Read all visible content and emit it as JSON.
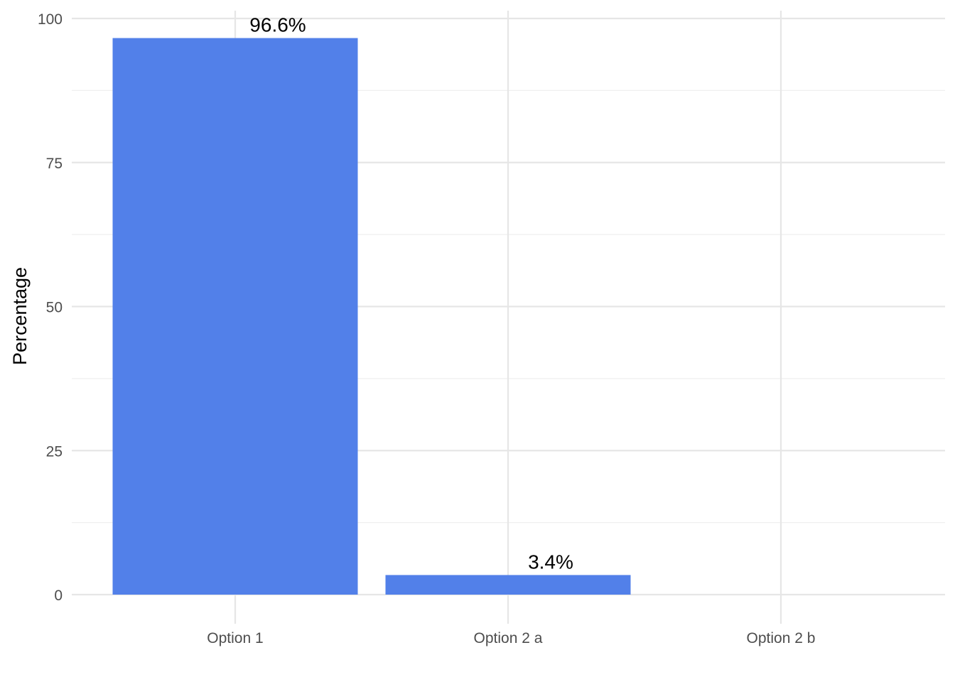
{
  "colors": {
    "bar": "#5280E9"
  },
  "chart_data": {
    "type": "bar",
    "title": "",
    "xlabel": "",
    "ylabel": "Percentage",
    "categories": [
      "Option 1",
      "Option 2 a",
      "Option 2 b"
    ],
    "values": [
      96.6,
      3.4,
      0
    ],
    "data_labels": [
      "96.6%",
      "3.4%",
      ""
    ],
    "ylim": [
      0,
      100
    ],
    "yticks": [
      0,
      25,
      50,
      75,
      100
    ],
    "ytick_labels": [
      "0",
      "25",
      "50",
      "75",
      "100"
    ],
    "grid": true
  }
}
